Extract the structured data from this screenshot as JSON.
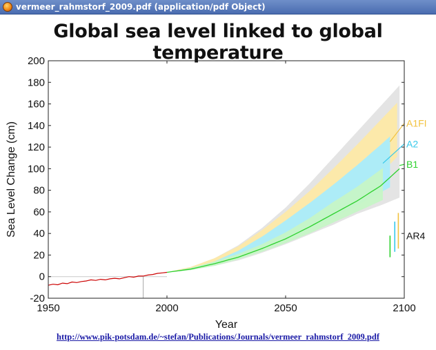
{
  "window": {
    "title": "vermeer_rahmstorf_2009.pdf (application/pdf Object)",
    "icon": "firefox-icon"
  },
  "chart_data": {
    "type": "area",
    "title": "Global sea level linked to global temperature",
    "xlabel": "Year",
    "ylabel": "Sea Level Change (cm)",
    "xlim": [
      1950,
      2100
    ],
    "ylim": [
      -20,
      200
    ],
    "xticks": [
      1950,
      2000,
      2050,
      2100
    ],
    "yticks": [
      -20,
      0,
      20,
      40,
      60,
      80,
      100,
      120,
      140,
      160,
      180,
      200
    ],
    "grid": false,
    "vertical_marker_x": 1990,
    "observed": {
      "color": "#cc0000",
      "x": [
        1950,
        1952,
        1954,
        1956,
        1958,
        1960,
        1962,
        1964,
        1966,
        1968,
        1970,
        1972,
        1974,
        1976,
        1978,
        1980,
        1982,
        1984,
        1986,
        1988,
        1990,
        1992,
        1994,
        1996,
        1998,
        2000
      ],
      "y": [
        -8,
        -7,
        -7.5,
        -6,
        -6.5,
        -5,
        -5.5,
        -4.5,
        -4,
        -3,
        -3.5,
        -2.5,
        -3,
        -2,
        -1.5,
        -2,
        -1,
        0,
        -0.5,
        0.5,
        0.5,
        1.5,
        2,
        3,
        3.5,
        4
      ]
    },
    "projection_years": [
      2000,
      2010,
      2020,
      2030,
      2040,
      2050,
      2060,
      2070,
      2080,
      2090,
      2100
    ],
    "series": [
      {
        "name": "A1FI",
        "color": "#f2c23e",
        "band_color": "#fde9a6",
        "band_end": 2097,
        "low": [
          4,
          7,
          12,
          20,
          29,
          39,
          50,
          62,
          77,
          95,
          118
        ],
        "high": [
          4,
          9,
          17,
          28,
          43,
          60,
          79,
          100,
          122,
          145,
          168
        ]
      },
      {
        "name": "A2",
        "color": "#36c8ea",
        "band_color": "#a9ecfb",
        "band_end": 2094,
        "low": [
          4,
          7,
          12,
          18,
          26,
          34,
          44,
          55,
          66,
          78,
          90
        ],
        "high": [
          4,
          8,
          14,
          24,
          37,
          52,
          68,
          85,
          103,
          122,
          142
        ]
      },
      {
        "name": "B1",
        "color": "#2ed12e",
        "band_color": "#c6f5c6",
        "band_end": 2091,
        "central": [
          4,
          7,
          12,
          18,
          26,
          35,
          46,
          58,
          70,
          84,
          104
        ],
        "low": [
          4,
          6,
          10,
          16,
          23,
          31,
          40,
          50,
          60,
          70,
          80
        ],
        "high": [
          4,
          8,
          14,
          21,
          30,
          41,
          54,
          69,
          83,
          99,
          115
        ]
      }
    ],
    "outer_envelope": {
      "color": "#e4e4e4",
      "low": [
        4,
        6,
        10,
        15,
        22,
        30,
        39,
        48,
        58,
        66,
        75
      ],
      "high": [
        4,
        9,
        17,
        29,
        45,
        64,
        86,
        110,
        134,
        158,
        182
      ]
    },
    "ar4": {
      "label": "AR4",
      "ranges": [
        {
          "name": "B1",
          "color": "#2ed12e",
          "x": 2094,
          "low": 18,
          "high": 38
        },
        {
          "name": "A2",
          "color": "#36c8ea",
          "x": 2096,
          "low": 23,
          "high": 51
        },
        {
          "name": "A1FI",
          "color": "#f2c23e",
          "x": 2097.5,
          "low": 26,
          "high": 59
        }
      ]
    }
  },
  "footer": {
    "url": "http://www.pik-potsdam.de/~stefan/Publications/Journals/vermeer_rahmstorf_2009.pdf"
  }
}
